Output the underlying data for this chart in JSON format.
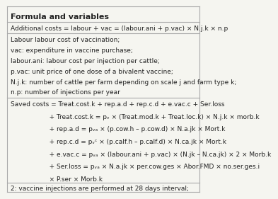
{
  "title": "Formula and variables",
  "bg_color": "#f5f5f0",
  "row1_text": "Additional costs = labour + vac = (labour.ani + p.vac) × N.j.k × n.p",
  "row2_lines": [
    "Labour labour cost of vaccination;",
    "vac: expenditure in vaccine purchase;",
    "labour.ani: labour cost per injection per cattle;",
    "p.vac: unit price of one dose of a bivalent vaccine;",
    "N.j.k: number of cattle per farm depending on scale j and farm type k;",
    "n.p: number of injections per year"
  ],
  "row3_lines": [
    "Saved costs = Treat.cost.k + rep.a.d + rep.c.d + e.vac.c + Ser.loss",
    "                   + Treat.cost.k = pᵥ × (Treat.mod.k + Treat.loc.k) × N.j.k × morb.k",
    "                   + rep.a.d = pᵥₐ × (p.cow.h – p.cow.d) × N.a.jk × Mort.k",
    "                   + rep.c.d = pᵥᶜ × (p.calf.h – p.calf.d) × N.ca.jk × Mort.k",
    "                   + e.vac.c = pᵥₐ × (labour.ani + p.vac) × (N.jk – N.ca.jk) × 2 × Morb.k",
    "                   + Ser.loss = pᵥₐ × N.a.jk × per.cow.ges × Abor.FMD × no.ser.ges.i",
    "                   × P.ser × Morb.k"
  ],
  "footer_text": "2: vaccine injections are performed at 28 days interval;",
  "font_size": 6.5,
  "title_font_size": 8.0,
  "line_color": "#aaaaaa",
  "text_color": "#222222"
}
